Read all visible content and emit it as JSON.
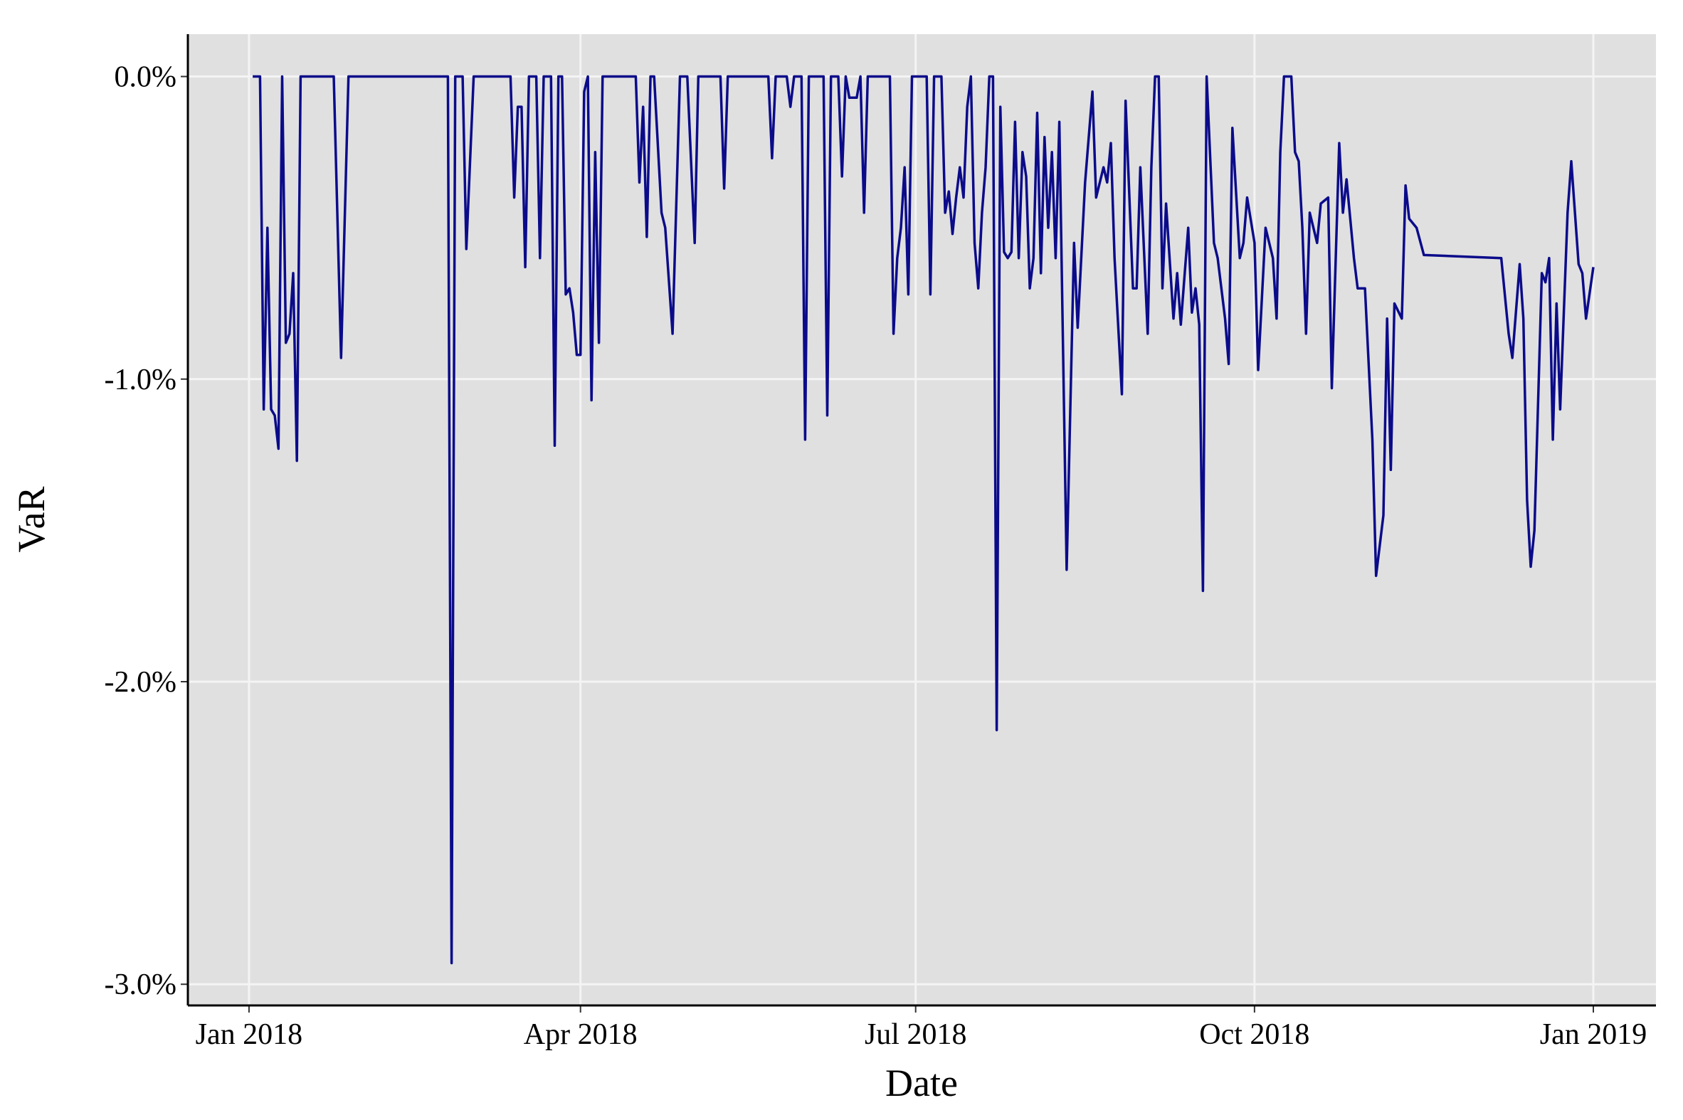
{
  "chart_data": {
    "type": "line",
    "x_label": "Date",
    "y_label": "VaR",
    "color": "#0b0b8a",
    "grid": true,
    "xlim": [
      -16.6,
      382
    ],
    "ylim": [
      -3.07,
      0.14
    ],
    "xticks": [
      {
        "value": 0,
        "label": "Jan 2018"
      },
      {
        "value": 90,
        "label": "Apr 2018"
      },
      {
        "value": 181,
        "label": "Jul 2018"
      },
      {
        "value": 273,
        "label": "Oct 2018"
      },
      {
        "value": 365,
        "label": "Jan 2019"
      }
    ],
    "yticks": [
      {
        "value": 0,
        "label": "0.0%"
      },
      {
        "value": -1,
        "label": "-1.0%"
      },
      {
        "value": -2,
        "label": "-2.0%"
      },
      {
        "value": -3,
        "label": "-3.0%"
      }
    ],
    "x": [
      1,
      3,
      4,
      5,
      6,
      7,
      8,
      9,
      10,
      11,
      12,
      13,
      14,
      23,
      25,
      27,
      54,
      55,
      56,
      58,
      59,
      61,
      71,
      72,
      73,
      74,
      75,
      76,
      78,
      79,
      80,
      82,
      83,
      84,
      85,
      86,
      87,
      88,
      89,
      90,
      91,
      92,
      93,
      94,
      95,
      96,
      105,
      106,
      107,
      108,
      109,
      110,
      112,
      113,
      115,
      117,
      119,
      121,
      122,
      128,
      129,
      130,
      141,
      142,
      143,
      146,
      147,
      148,
      150,
      151,
      152,
      156,
      157,
      158,
      160,
      161,
      162,
      163,
      165,
      166,
      167,
      168,
      174,
      175,
      176,
      177,
      178,
      179,
      180,
      181,
      184,
      185,
      186,
      188,
      189,
      190,
      191,
      192,
      193,
      194,
      195,
      196,
      197,
      198,
      199,
      200,
      201,
      202,
      203,
      204,
      205,
      206,
      207,
      208,
      209,
      210,
      211,
      212,
      213,
      214,
      215,
      216,
      217,
      218,
      219,
      220,
      222,
      224,
      225,
      227,
      229,
      230,
      232,
      233,
      234,
      235,
      237,
      238,
      240,
      241,
      242,
      244,
      245,
      246,
      247,
      248,
      249,
      251,
      252,
      253,
      255,
      256,
      257,
      258,
      259,
      260,
      262,
      263,
      265,
      266,
      267,
      269,
      270,
      271,
      273,
      274,
      276,
      278,
      279,
      280,
      281,
      283,
      284,
      285,
      286,
      287,
      288,
      290,
      291,
      293,
      294,
      296,
      297,
      298,
      300,
      301,
      303,
      305,
      306,
      308,
      309,
      310,
      311,
      313,
      314,
      315,
      317,
      319,
      340,
      342,
      343,
      345,
      346,
      347,
      348,
      349,
      351,
      352,
      353,
      354,
      355,
      356,
      358,
      359,
      361,
      362,
      363,
      365
    ],
    "values": [
      0,
      0,
      -1.1,
      -0.5,
      -1.1,
      -1.12,
      -1.23,
      0,
      -0.88,
      -0.85,
      -0.65,
      -1.27,
      0,
      0,
      -0.93,
      0,
      0,
      -2.93,
      0,
      0,
      -0.57,
      0,
      0,
      -0.4,
      -0.1,
      -0.1,
      -0.63,
      0,
      0,
      -0.6,
      0,
      0,
      -1.22,
      0,
      0,
      -0.72,
      -0.7,
      -0.78,
      -0.92,
      -0.92,
      -0.05,
      0,
      -1.07,
      -0.25,
      -0.88,
      0,
      0,
      -0.35,
      -0.1,
      -0.53,
      0,
      0,
      -0.45,
      -0.5,
      -0.85,
      0,
      0,
      -0.55,
      0,
      0,
      -0.37,
      0,
      0,
      -0.27,
      0,
      0,
      -0.1,
      0,
      0,
      -1.2,
      0,
      0,
      -1.12,
      0,
      0,
      -0.33,
      0,
      -0.07,
      -0.07,
      0,
      -0.45,
      0,
      0,
      -0.85,
      -0.6,
      -0.5,
      -0.3,
      -0.72,
      0,
      0,
      0,
      -0.72,
      0,
      0,
      -0.45,
      -0.38,
      -0.52,
      -0.4,
      -0.3,
      -0.4,
      -0.1,
      0,
      -0.55,
      -0.7,
      -0.45,
      -0.3,
      0,
      0,
      -2.16,
      -0.1,
      -0.58,
      -0.6,
      -0.58,
      -0.15,
      -0.6,
      -0.25,
      -0.33,
      -0.7,
      -0.6,
      -0.12,
      -0.65,
      -0.2,
      -0.5,
      -0.25,
      -0.6,
      -0.15,
      -1.63,
      -0.55,
      -0.83,
      -0.35,
      -0.05,
      -0.4,
      -0.3,
      -0.35,
      -0.22,
      -0.6,
      -1.05,
      -0.08,
      -0.7,
      -0.7,
      -0.3,
      -0.85,
      -0.3,
      0,
      0,
      -0.7,
      -0.42,
      -0.8,
      -0.65,
      -0.82,
      -0.5,
      -0.78,
      -0.7,
      -0.82,
      -1.7,
      0,
      -0.55,
      -0.6,
      -0.8,
      -0.95,
      -0.17,
      -0.6,
      -0.55,
      -0.4,
      -0.55,
      -0.97,
      -0.5,
      -0.6,
      -0.8,
      -0.25,
      0,
      0,
      -0.25,
      -0.28,
      -0.5,
      -0.85,
      -0.45,
      -0.55,
      -0.42,
      -0.4,
      -1.03,
      -0.22,
      -0.45,
      -0.34,
      -0.6,
      -0.7,
      -0.7,
      -1.2,
      -1.65,
      -1.45,
      -0.8,
      -1.3,
      -0.75,
      -0.8,
      -0.36,
      -0.47,
      -0.5,
      -0.59,
      -0.6,
      -0.85,
      -0.93,
      -0.62,
      -0.8,
      -1.4,
      -1.62,
      -1.5,
      -0.65,
      -0.68,
      -0.6,
      -1.2,
      -0.75,
      -1.1,
      -0.45,
      -0.28,
      -0.62,
      -0.65,
      -0.8,
      -0.63
    ]
  }
}
